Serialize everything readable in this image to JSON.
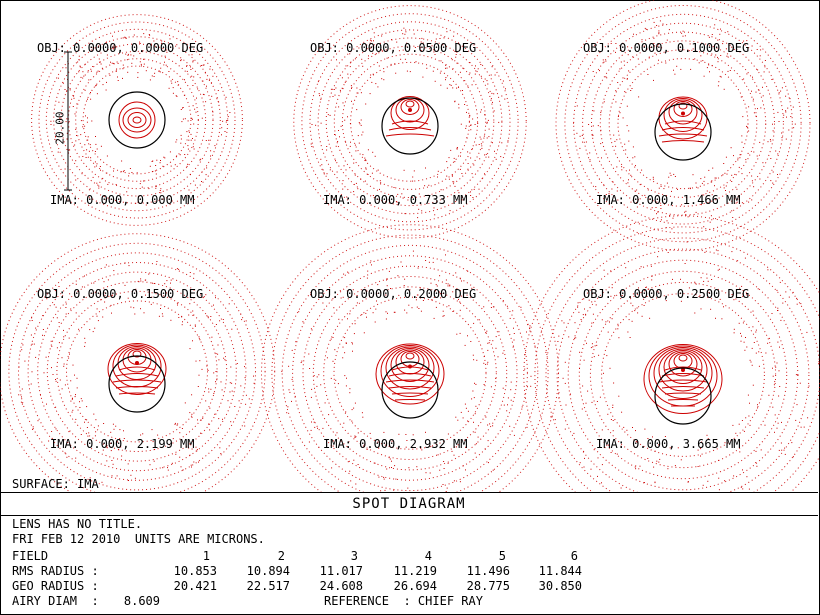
{
  "surface_label": "SURFACE: IMA",
  "title": "SPOT DIAGRAM",
  "info": {
    "line1": "LENS HAS NO TITLE.",
    "line2": "FRI FEB 12 2010  UNITS ARE MICRONS.",
    "field_label": "FIELD",
    "rms_label": "RMS RADIUS :",
    "geo_label": "GEO RADIUS :",
    "airy_label": "AIRY DIAM  :",
    "airy_value": "8.609",
    "reference": "REFERENCE  : CHIEF RAY",
    "fields": [
      "1",
      "2",
      "3",
      "4",
      "5",
      "6"
    ],
    "rms": [
      "10.853",
      "10.894",
      "11.017",
      "11.219",
      "11.496",
      "11.844"
    ],
    "geo": [
      "20.421",
      "22.517",
      "24.608",
      "26.694",
      "28.775",
      "30.850"
    ]
  },
  "chart_data": {
    "type": "scatter",
    "title": "SPOT DIAGRAM",
    "scale_bar_label": "20.00",
    "scale_bar_value": 20.0,
    "units": "MICRONS",
    "reference": "CHIEF RAY",
    "airy_diameter": 8.609,
    "ray_color": "#cc0000",
    "airy_color": "#000000",
    "fields": [
      {
        "index": 1,
        "obj_label": "OBJ: 0.0000, 0.0000 DEG",
        "ima_label": "IMA: 0.000, 0.000 MM",
        "obj_deg": [
          0.0,
          0.0
        ],
        "ima_mm": [
          0.0,
          0.0
        ],
        "rms_radius": 10.853,
        "geo_radius": 20.421
      },
      {
        "index": 2,
        "obj_label": "OBJ: 0.0000, 0.0500 DEG",
        "ima_label": "IMA: 0.000, 0.733 MM",
        "obj_deg": [
          0.0,
          0.05
        ],
        "ima_mm": [
          0.0,
          0.733
        ],
        "rms_radius": 10.894,
        "geo_radius": 22.517
      },
      {
        "index": 3,
        "obj_label": "OBJ: 0.0000, 0.1000 DEG",
        "ima_label": "IMA: 0.000, 1.466 MM",
        "obj_deg": [
          0.0,
          0.1
        ],
        "ima_mm": [
          0.0,
          1.466
        ],
        "rms_radius": 11.017,
        "geo_radius": 24.608
      },
      {
        "index": 4,
        "obj_label": "OBJ: 0.0000, 0.1500 DEG",
        "ima_label": "IMA: 0.000, 2.199 MM",
        "obj_deg": [
          0.0,
          0.15
        ],
        "ima_mm": [
          0.0,
          2.199
        ],
        "rms_radius": 11.219,
        "geo_radius": 26.694
      },
      {
        "index": 5,
        "obj_label": "OBJ: 0.0000, 0.2000 DEG",
        "ima_label": "IMA: 0.000, 2.932 MM",
        "obj_deg": [
          0.0,
          0.2
        ],
        "ima_mm": [
          0.0,
          2.932
        ],
        "rms_radius": 11.496,
        "geo_radius": 28.775
      },
      {
        "index": 6,
        "obj_label": "OBJ: 0.0000, 0.2500 DEG",
        "ima_label": "IMA: 0.000, 3.665 MM",
        "obj_deg": [
          0.0,
          0.25
        ],
        "ima_mm": [
          0.0,
          3.665
        ],
        "rms_radius": 11.844,
        "geo_radius": 30.85
      }
    ]
  }
}
